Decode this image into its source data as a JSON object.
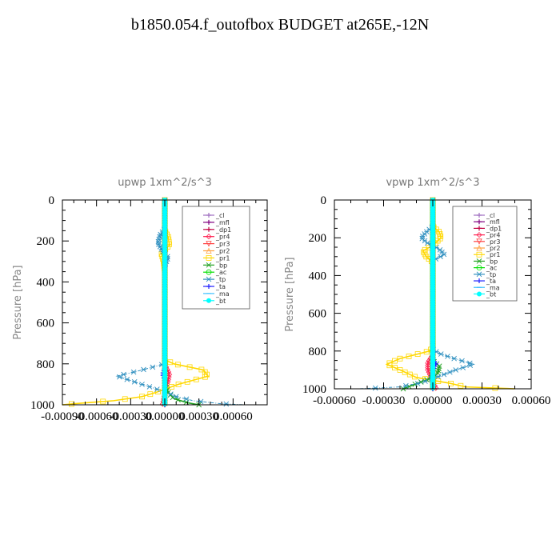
{
  "title": "b1850.054.f_outofbox  BUDGET at265E,-12N",
  "chart_data": [
    {
      "type": "line",
      "title": "upwp   1xm^2/s^3",
      "ylabel": "Pressure [hPa]",
      "xlabel": "",
      "xlim": [
        -0.0009,
        0.0009
      ],
      "ylim": [
        1000,
        0
      ],
      "xticks": [
        -0.0009,
        -0.0006,
        -0.0003,
        0.0,
        0.0003,
        0.0006
      ],
      "xtick_labels": [
        "-0.00090",
        "-0.00060",
        "-0.00030",
        "0.00000",
        "0.00030",
        "0.00060"
      ],
      "yticks": [
        0,
        200,
        400,
        600,
        800,
        1000
      ],
      "ytick_labels": [
        "0",
        "200",
        "400",
        "600",
        "800",
        "1000"
      ],
      "legend_position": "top-right",
      "series": [
        {
          "name": "_cl",
          "color": "#a070c0",
          "p": [
            0,
            1000
          ],
          "x": [
            0,
            0
          ]
        },
        {
          "name": "_mfl",
          "color": "#800080",
          "p": [
            0,
            1000
          ],
          "x": [
            0,
            0
          ]
        },
        {
          "name": "_dp1",
          "color": "#c00040",
          "p": [
            0,
            1000
          ],
          "x": [
            0,
            0
          ]
        },
        {
          "name": "_pr4",
          "color": "#ff2050",
          "p": [
            0,
            800,
            850,
            880,
            950,
            1000
          ],
          "x": [
            0,
            0,
            4e-05,
            3e-05,
            0,
            -2e-05
          ]
        },
        {
          "name": "_pr3",
          "color": "#ff4040",
          "p": [
            0,
            1000
          ],
          "x": [
            0,
            0
          ]
        },
        {
          "name": "_pr2",
          "color": "#ffa040",
          "p": [
            0,
            1000
          ],
          "x": [
            0,
            0
          ]
        },
        {
          "name": "_pr1",
          "color": "#ffd700",
          "p": [
            0,
            150,
            180,
            220,
            260,
            300,
            350,
            780,
            800,
            830,
            860,
            900,
            940,
            960,
            980,
            995,
            1000
          ],
          "x": [
            0,
            0,
            3e-05,
            4e-05,
            -3e-05,
            -1e-05,
            0,
            0,
            8e-05,
            0.00034,
            0.00038,
            0.00012,
            -8e-05,
            -0.0002,
            -0.00045,
            -0.0008,
            -0.0009
          ]
        },
        {
          "name": "_bp",
          "color": "#20a020",
          "p": [
            0,
            900,
            940,
            970,
            990,
            1000
          ],
          "x": [
            0,
            0,
            3e-05,
            8e-05,
            0.0002,
            0.0003
          ]
        },
        {
          "name": "_ac",
          "color": "#00e000",
          "p": [
            0,
            1000
          ],
          "x": [
            0,
            0
          ]
        },
        {
          "name": "_tp",
          "color": "#3090c0",
          "p": [
            0,
            140,
            170,
            210,
            250,
            280,
            320,
            780,
            800,
            830,
            860,
            900,
            940,
            960,
            980,
            995,
            1000
          ],
          "x": [
            0,
            0,
            -4e-05,
            -6e-05,
            -2e-05,
            3e-05,
            0,
            0,
            0,
            -0.0002,
            -0.00042,
            -0.0002,
            2e-05,
            0.0001,
            0.00025,
            0.0005,
            0.0007
          ]
        },
        {
          "name": "_ta",
          "color": "#2020ff",
          "p": [
            0,
            820,
            850,
            880,
            1000
          ],
          "x": [
            0,
            0,
            -2e-05,
            0,
            0
          ]
        },
        {
          "name": "_ma",
          "color": "#40c0ff",
          "p": [
            0,
            1000
          ],
          "x": [
            0,
            0
          ]
        },
        {
          "name": "_bt",
          "color": "#00ffff",
          "p": [
            0,
            1000
          ],
          "x": [
            0,
            0
          ]
        }
      ]
    },
    {
      "type": "line",
      "title": "vpwp   1xm^2/s^3",
      "ylabel": "Pressure [hPa]",
      "xlabel": "",
      "xlim": [
        -0.0006,
        0.0006
      ],
      "ylim": [
        1000,
        0
      ],
      "xticks": [
        -0.0006,
        -0.0003,
        0.0,
        0.0003,
        0.0006
      ],
      "xtick_labels": [
        "-0.00060",
        "-0.00030",
        "0.00000",
        "0.00030",
        "0.00060"
      ],
      "yticks": [
        0,
        200,
        400,
        600,
        800,
        1000
      ],
      "ytick_labels": [
        "0",
        "200",
        "400",
        "600",
        "800",
        "1000"
      ],
      "legend_position": "top-right",
      "series": [
        {
          "name": "_cl",
          "color": "#a070c0",
          "p": [
            0,
            1000
          ],
          "x": [
            0,
            0
          ]
        },
        {
          "name": "_mfl",
          "color": "#800080",
          "p": [
            0,
            1000
          ],
          "x": [
            0,
            0
          ]
        },
        {
          "name": "_dp1",
          "color": "#c00040",
          "p": [
            0,
            1000
          ],
          "x": [
            0,
            0
          ]
        },
        {
          "name": "_pr4",
          "color": "#ff2050",
          "p": [
            0,
            820,
            860,
            900,
            960,
            1000
          ],
          "x": [
            0,
            0,
            -3e-05,
            -3e-05,
            0,
            2e-05
          ]
        },
        {
          "name": "_pr3",
          "color": "#ff4040",
          "p": [
            0,
            1000
          ],
          "x": [
            0,
            0
          ]
        },
        {
          "name": "_pr2",
          "color": "#ffa040",
          "p": [
            0,
            1000
          ],
          "x": [
            0,
            0
          ]
        },
        {
          "name": "_pr1",
          "color": "#ffd700",
          "p": [
            0,
            140,
            170,
            200,
            240,
            270,
            300,
            330,
            780,
            800,
            840,
            870,
            900,
            940,
            970,
            990,
            1000
          ],
          "x": [
            0,
            0,
            4e-05,
            5e-05,
            0,
            -6e-05,
            -4e-05,
            0,
            0,
            -2e-05,
            -0.0002,
            -0.00028,
            -0.0002,
            -0.0001,
            0.0001,
            0.0002,
            0.0005
          ]
        },
        {
          "name": "_bp",
          "color": "#20a020",
          "p": [
            0,
            850,
            880,
            920,
            950,
            980,
            1000
          ],
          "x": [
            0,
            0,
            4e-05,
            3e-05,
            -3e-05,
            -0.00012,
            -0.00018
          ]
        },
        {
          "name": "_ac",
          "color": "#00e000",
          "p": [
            0,
            1000
          ],
          "x": [
            0,
            0
          ]
        },
        {
          "name": "_tp",
          "color": "#3090c0",
          "p": [
            0,
            140,
            170,
            200,
            230,
            260,
            290,
            320,
            790,
            810,
            840,
            870,
            900,
            940,
            970,
            990,
            1000
          ],
          "x": [
            0,
            0,
            -4e-05,
            -7e-05,
            -3e-05,
            4e-05,
            7e-05,
            0,
            0,
            3e-05,
            0.00013,
            0.00025,
            0.00014,
            2e-05,
            -8e-05,
            -0.0002,
            -0.00045
          ]
        },
        {
          "name": "_ta",
          "color": "#2020ff",
          "p": [
            0,
            840,
            870,
            900,
            1000
          ],
          "x": [
            0,
            0,
            2e-05,
            0,
            0
          ]
        },
        {
          "name": "_ma",
          "color": "#40c0ff",
          "p": [
            0,
            1000
          ],
          "x": [
            0,
            0
          ]
        },
        {
          "name": "_bt",
          "color": "#00ffff",
          "p": [
            0,
            1000
          ],
          "x": [
            0,
            0
          ]
        }
      ]
    }
  ]
}
